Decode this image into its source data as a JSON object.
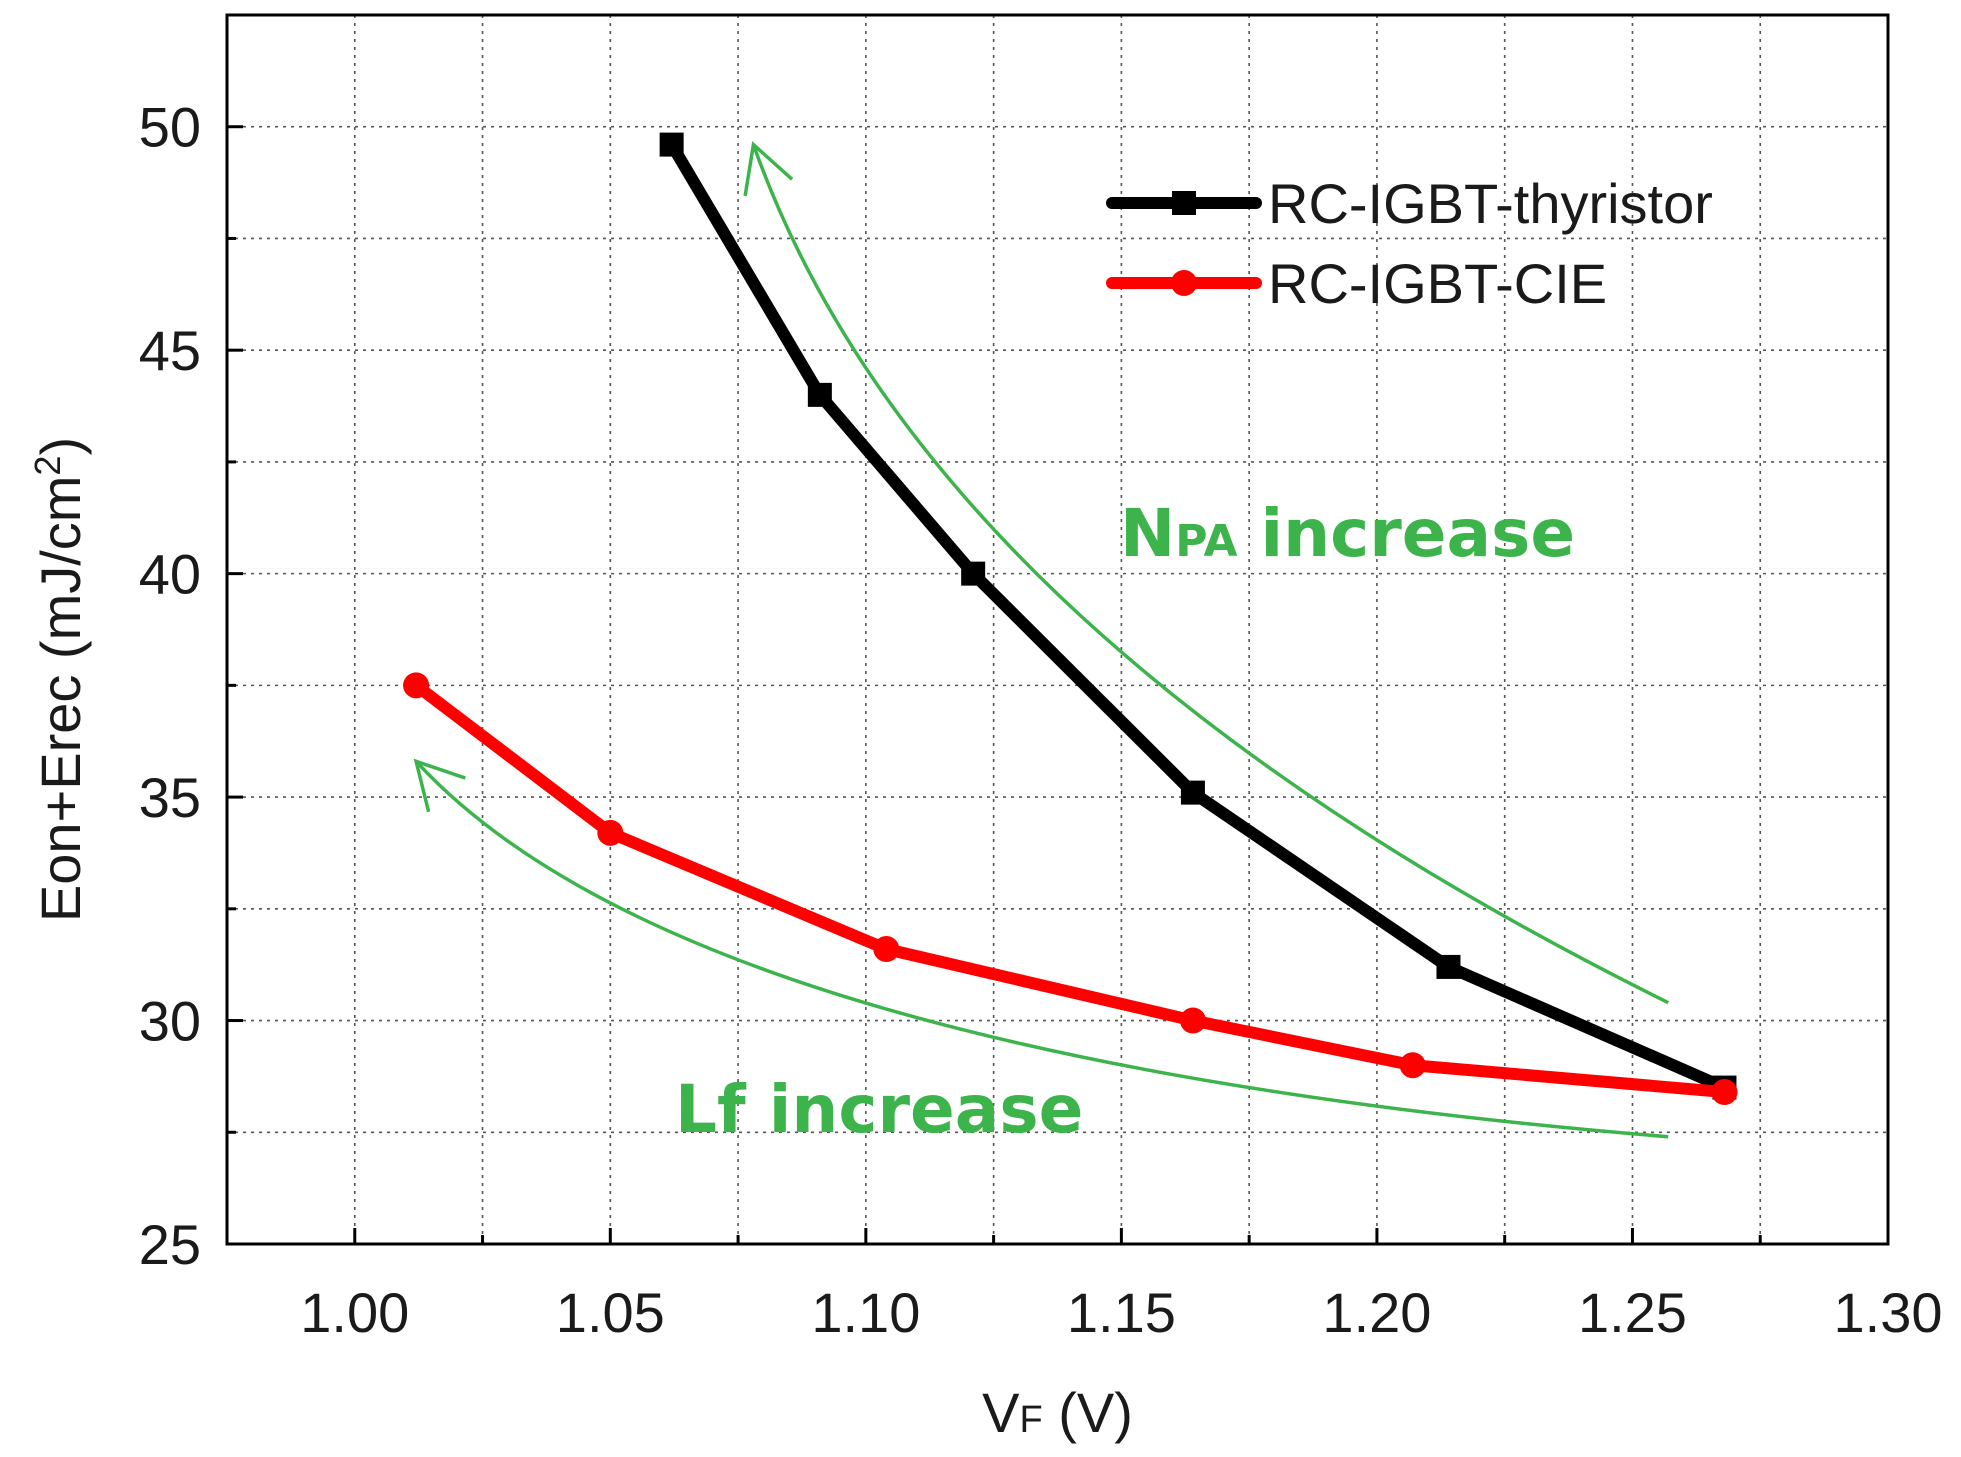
{
  "chart_data": {
    "type": "line",
    "xlabel": "V",
    "xlabel_sub": "F",
    "xlabel_unit": " (V)",
    "ylabel": "Eon+Erec (mJ/cm",
    "ylabel_sup": "2",
    "ylabel_end": ")",
    "xlim": [
      0.975,
      1.3
    ],
    "ylim": [
      25,
      52.5
    ],
    "xticks": [
      1.0,
      1.05,
      1.1,
      1.15,
      1.2,
      1.25,
      1.3
    ],
    "xtick_labels": [
      "1.00",
      "1.05",
      "1.10",
      "1.15",
      "1.20",
      "1.25",
      "1.30"
    ],
    "yticks": [
      25,
      30,
      35,
      40,
      45,
      50
    ],
    "ytick_labels": [
      "25",
      "30",
      "35",
      "40",
      "45",
      "50"
    ],
    "grid": true,
    "legend_position": "top-right",
    "series": [
      {
        "name": "RC-IGBT-thyristor",
        "color": "#000000",
        "marker": "square",
        "x": [
          1.062,
          1.091,
          1.121,
          1.164,
          1.214,
          1.268
        ],
        "y": [
          49.6,
          44.0,
          40.0,
          35.1,
          31.2,
          28.5
        ]
      },
      {
        "name": "RC-IGBT-CIE",
        "color": "#ff0000",
        "marker": "circle",
        "x": [
          1.012,
          1.05,
          1.104,
          1.164,
          1.207,
          1.268
        ],
        "y": [
          37.5,
          34.2,
          31.6,
          30.0,
          29.0,
          28.4
        ]
      }
    ],
    "annotations": [
      {
        "id": "npa",
        "text_main": "N",
        "text_sub": "PA",
        "text_end": " increase",
        "x": 1.151,
        "y": 40.8
      },
      {
        "id": "lf",
        "text_main": "Lf increase",
        "x": 1.038,
        "y": 27.8
      }
    ],
    "arrows": [
      {
        "id": "npa-arrow",
        "color": "#3cb44b",
        "from": [
          1.257,
          30.4
        ],
        "ctrl": [
          1.112,
          38.6
        ],
        "to": [
          1.078,
          49.6
        ]
      },
      {
        "id": "lf-arrow",
        "color": "#3cb44b",
        "from": [
          1.257,
          27.4
        ],
        "ctrl": [
          1.065,
          29.2
        ],
        "to": [
          1.012,
          35.8
        ]
      }
    ]
  }
}
